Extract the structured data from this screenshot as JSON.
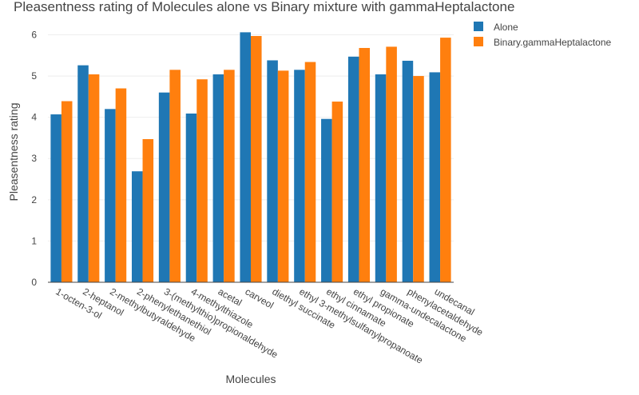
{
  "chart_data": {
    "type": "bar",
    "title": "Pleasentness rating of Molecules alone vs Binary mixture with gammaHeptalactone",
    "xlabel": "Molecules",
    "ylabel": "Pleasentness rating",
    "ylim": [
      0,
      6.3
    ],
    "yticks": [
      0,
      1,
      2,
      3,
      4,
      5,
      6
    ],
    "grid": true,
    "legend_position": "top-right",
    "categories": [
      "1-octen-3-ol",
      "2-heptanol",
      "2-methylbutyraldehyde",
      "2-phenylethanethiol",
      "3-(methylthio)propionaldehyde",
      "4-methylthiazole",
      "acetal",
      "carveol",
      "diethyl succinate",
      "ethyl 3-methylsulfanylpropanoate",
      "ethyl cinnamate",
      "ethyl propionate",
      "gamma-undecalactone",
      "phenylacetaldehyde",
      "undecanal"
    ],
    "series": [
      {
        "name": "Alone",
        "color": "#1f77b4",
        "values": [
          4.07,
          5.26,
          4.2,
          2.69,
          4.6,
          4.09,
          5.04,
          6.06,
          5.38,
          5.15,
          3.96,
          5.47,
          5.04,
          5.37,
          5.09
        ]
      },
      {
        "name": "Binary.gammaHeptalactone",
        "color": "#ff7f0e",
        "values": [
          4.39,
          5.04,
          4.7,
          3.47,
          5.15,
          4.92,
          5.15,
          5.97,
          5.13,
          5.34,
          4.38,
          5.68,
          5.71,
          5.0,
          5.93
        ]
      }
    ]
  }
}
